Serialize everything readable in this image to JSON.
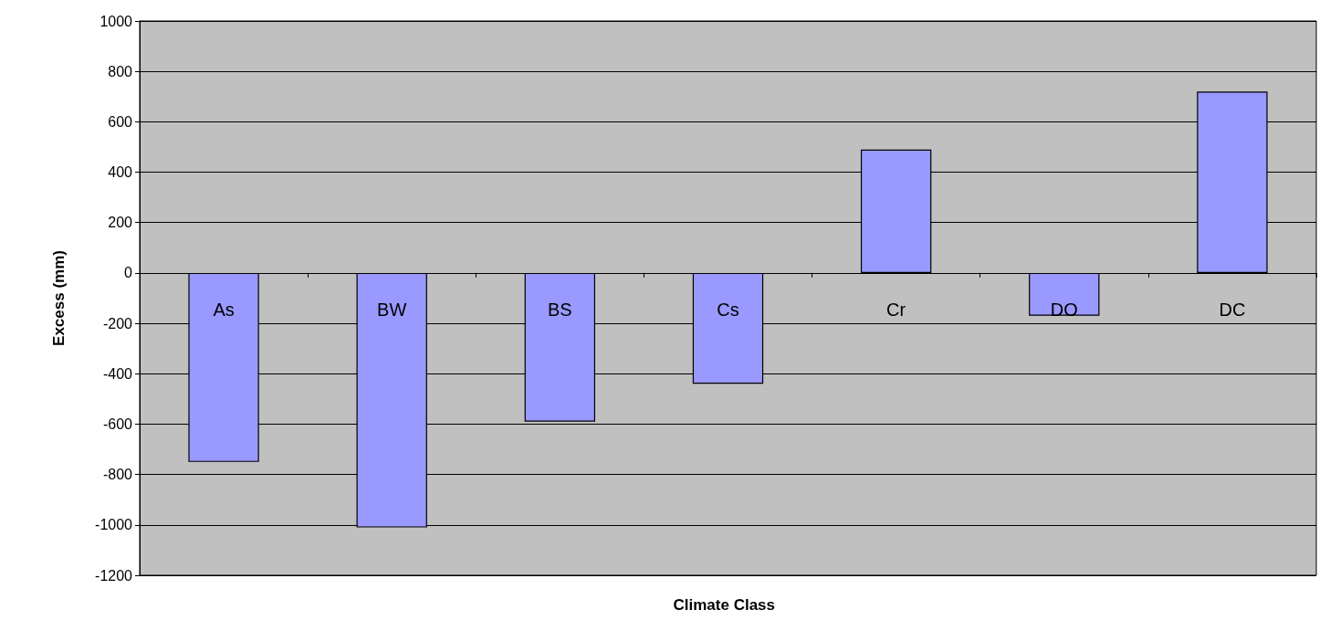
{
  "chart_data": {
    "type": "bar",
    "xlabel": "Climate Class",
    "ylabel": "Excess (mm)",
    "categories": [
      "As",
      "BW",
      "BS",
      "Cs",
      "Cr",
      "DO",
      "DC"
    ],
    "values": [
      -750,
      -1010,
      -590,
      -440,
      490,
      -170,
      720
    ],
    "color": "#9999ff",
    "ylim": [
      -1200,
      1000
    ],
    "yticks": [
      -1200,
      -1000,
      -800,
      -600,
      -400,
      -200,
      0,
      200,
      400,
      600,
      800,
      1000
    ],
    "grid": "y"
  }
}
